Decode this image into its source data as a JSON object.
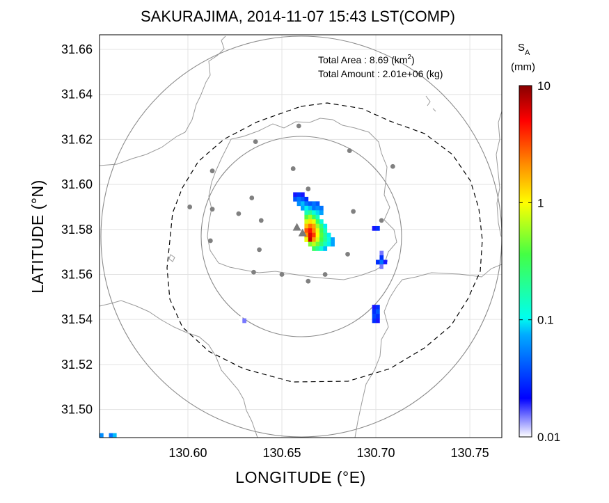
{
  "chart_data": {
    "type": "heatmap",
    "title": "SAKURAJIMA, 2014-11-07 15:43 LST(COMP)",
    "xlabel": "LONGITUDE (°E)",
    "ylabel": "LATITUDE (°N)",
    "xlim": [
      130.553,
      130.767
    ],
    "ylim": [
      31.4875,
      31.6665
    ],
    "xticks": [
      130.6,
      130.65,
      130.7,
      130.75
    ],
    "xtick_labels": [
      "130.60",
      "130.65",
      "130.70",
      "130.75"
    ],
    "yticks": [
      31.5,
      31.52,
      31.54,
      31.56,
      31.58,
      31.6,
      31.62,
      31.64,
      31.66
    ],
    "ytick_labels": [
      "31.50",
      "31.52",
      "31.54",
      "31.56",
      "31.58",
      "31.60",
      "31.62",
      "31.64",
      "31.66"
    ],
    "grid": true,
    "annotations": {
      "area_label": "Total Area   : 8.69 (km",
      "area_sup": "2",
      "area_close": ")",
      "amount_label": "Total Amount : 2.01e+06 (kg)"
    },
    "colorbar": {
      "label_main": "S",
      "label_sub": "A",
      "label_unit": "(mm)",
      "scale": "log",
      "range": [
        0.01,
        10
      ],
      "ticks": [
        10,
        1,
        0.1,
        0.01
      ],
      "tick_labels": [
        "10",
        "1",
        "0.1",
        "0.01"
      ],
      "colors": [
        "#ffffff",
        "#0000ff",
        "#00aaff",
        "#00ffee",
        "#44ff44",
        "#ffff00",
        "#ff8800",
        "#ff0000",
        "#880000"
      ]
    },
    "vent_markers": [
      {
        "lon": 130.658,
        "lat": 31.581
      },
      {
        "lon": 130.661,
        "lat": 31.5785
      }
    ],
    "stations": [
      {
        "lon": 130.659,
        "lat": 31.626
      },
      {
        "lon": 130.636,
        "lat": 31.619
      },
      {
        "lon": 130.686,
        "lat": 31.615
      },
      {
        "lon": 130.613,
        "lat": 31.606
      },
      {
        "lon": 130.656,
        "lat": 31.607
      },
      {
        "lon": 130.709,
        "lat": 31.608
      },
      {
        "lon": 130.664,
        "lat": 31.598
      },
      {
        "lon": 130.601,
        "lat": 31.59
      },
      {
        "lon": 130.613,
        "lat": 31.589
      },
      {
        "lon": 130.634,
        "lat": 31.594
      },
      {
        "lon": 130.627,
        "lat": 31.587
      },
      {
        "lon": 130.639,
        "lat": 31.584
      },
      {
        "lon": 130.688,
        "lat": 31.588
      },
      {
        "lon": 130.703,
        "lat": 31.584
      },
      {
        "lon": 130.612,
        "lat": 31.575
      },
      {
        "lon": 130.638,
        "lat": 31.571
      },
      {
        "lon": 130.685,
        "lat": 31.569
      },
      {
        "lon": 130.635,
        "lat": 31.561
      },
      {
        "lon": 130.65,
        "lat": 31.56
      },
      {
        "lon": 130.673,
        "lat": 31.56
      },
      {
        "lon": 130.664,
        "lat": 31.557
      }
    ],
    "ash_cells": [
      {
        "lon": 130.657,
        "lat": 31.5955,
        "v": 0.02
      },
      {
        "lon": 130.659,
        "lat": 31.5955,
        "v": 0.03
      },
      {
        "lon": 130.661,
        "lat": 31.5955,
        "v": 0.02
      },
      {
        "lon": 130.657,
        "lat": 31.5935,
        "v": 0.04
      },
      {
        "lon": 130.659,
        "lat": 31.5935,
        "v": 0.05
      },
      {
        "lon": 130.661,
        "lat": 31.5935,
        "v": 0.04
      },
      {
        "lon": 130.663,
        "lat": 31.5935,
        "v": 0.03
      },
      {
        "lon": 130.659,
        "lat": 31.5915,
        "v": 0.06
      },
      {
        "lon": 130.661,
        "lat": 31.5915,
        "v": 0.08
      },
      {
        "lon": 130.663,
        "lat": 31.5915,
        "v": 0.05
      },
      {
        "lon": 130.665,
        "lat": 31.5915,
        "v": 0.04
      },
      {
        "lon": 130.667,
        "lat": 31.5915,
        "v": 0.05
      },
      {
        "lon": 130.669,
        "lat": 31.5915,
        "v": 0.04
      },
      {
        "lon": 130.661,
        "lat": 31.5895,
        "v": 0.07
      },
      {
        "lon": 130.663,
        "lat": 31.5895,
        "v": 0.1
      },
      {
        "lon": 130.665,
        "lat": 31.5895,
        "v": 0.08
      },
      {
        "lon": 130.667,
        "lat": 31.5895,
        "v": 0.05
      },
      {
        "lon": 130.669,
        "lat": 31.5895,
        "v": 0.06
      },
      {
        "lon": 130.671,
        "lat": 31.5895,
        "v": 0.05
      },
      {
        "lon": 130.663,
        "lat": 31.5875,
        "v": 0.15
      },
      {
        "lon": 130.665,
        "lat": 31.5875,
        "v": 0.2
      },
      {
        "lon": 130.667,
        "lat": 31.5875,
        "v": 0.12
      },
      {
        "lon": 130.669,
        "lat": 31.5875,
        "v": 0.09
      },
      {
        "lon": 130.671,
        "lat": 31.5875,
        "v": 0.07
      },
      {
        "lon": 130.663,
        "lat": 31.5855,
        "v": 0.4
      },
      {
        "lon": 130.665,
        "lat": 31.5855,
        "v": 0.6
      },
      {
        "lon": 130.667,
        "lat": 31.5855,
        "v": 0.3
      },
      {
        "lon": 130.669,
        "lat": 31.5855,
        "v": 0.15
      },
      {
        "lon": 130.663,
        "lat": 31.5835,
        "v": 0.8
      },
      {
        "lon": 130.665,
        "lat": 31.5835,
        "v": 1.2
      },
      {
        "lon": 130.667,
        "lat": 31.5835,
        "v": 0.9
      },
      {
        "lon": 130.669,
        "lat": 31.5835,
        "v": 0.3
      },
      {
        "lon": 130.671,
        "lat": 31.5835,
        "v": 0.12
      },
      {
        "lon": 130.663,
        "lat": 31.5815,
        "v": 1.5
      },
      {
        "lon": 130.665,
        "lat": 31.5815,
        "v": 2.5
      },
      {
        "lon": 130.667,
        "lat": 31.5815,
        "v": 1.8
      },
      {
        "lon": 130.669,
        "lat": 31.5815,
        "v": 0.6
      },
      {
        "lon": 130.671,
        "lat": 31.5815,
        "v": 0.25
      },
      {
        "lon": 130.673,
        "lat": 31.5815,
        "v": 0.1
      },
      {
        "lon": 130.663,
        "lat": 31.5795,
        "v": 3.0
      },
      {
        "lon": 130.665,
        "lat": 31.5795,
        "v": 4.5
      },
      {
        "lon": 130.667,
        "lat": 31.5795,
        "v": 2.2
      },
      {
        "lon": 130.669,
        "lat": 31.5795,
        "v": 0.9
      },
      {
        "lon": 130.671,
        "lat": 31.5795,
        "v": 0.35
      },
      {
        "lon": 130.673,
        "lat": 31.5795,
        "v": 0.15
      },
      {
        "lon": 130.663,
        "lat": 31.5775,
        "v": 2.0
      },
      {
        "lon": 130.665,
        "lat": 31.5775,
        "v": 6.0
      },
      {
        "lon": 130.667,
        "lat": 31.5775,
        "v": 3.5
      },
      {
        "lon": 130.669,
        "lat": 31.5775,
        "v": 1.0
      },
      {
        "lon": 130.671,
        "lat": 31.5775,
        "v": 0.4
      },
      {
        "lon": 130.673,
        "lat": 31.5775,
        "v": 0.2
      },
      {
        "lon": 130.675,
        "lat": 31.5775,
        "v": 0.1
      },
      {
        "lon": 130.663,
        "lat": 31.5755,
        "v": 0.9
      },
      {
        "lon": 130.665,
        "lat": 31.5755,
        "v": 7.0
      },
      {
        "lon": 130.667,
        "lat": 31.5755,
        "v": 2.0
      },
      {
        "lon": 130.669,
        "lat": 31.5755,
        "v": 0.8
      },
      {
        "lon": 130.671,
        "lat": 31.5755,
        "v": 0.35
      },
      {
        "lon": 130.673,
        "lat": 31.5755,
        "v": 0.2
      },
      {
        "lon": 130.675,
        "lat": 31.5755,
        "v": 0.12
      },
      {
        "lon": 130.677,
        "lat": 31.5755,
        "v": 0.07
      },
      {
        "lon": 130.665,
        "lat": 31.5735,
        "v": 0.5
      },
      {
        "lon": 130.667,
        "lat": 31.5735,
        "v": 0.7
      },
      {
        "lon": 130.669,
        "lat": 31.5735,
        "v": 0.45
      },
      {
        "lon": 130.671,
        "lat": 31.5735,
        "v": 0.25
      },
      {
        "lon": 130.673,
        "lat": 31.5735,
        "v": 0.15
      },
      {
        "lon": 130.675,
        "lat": 31.5735,
        "v": 0.1
      },
      {
        "lon": 130.677,
        "lat": 31.5735,
        "v": 0.07
      },
      {
        "lon": 130.667,
        "lat": 31.5715,
        "v": 0.3
      },
      {
        "lon": 130.669,
        "lat": 31.5715,
        "v": 0.2
      },
      {
        "lon": 130.671,
        "lat": 31.5715,
        "v": 0.12
      },
      {
        "lon": 130.673,
        "lat": 31.5715,
        "v": 0.08
      },
      {
        "lon": 130.699,
        "lat": 31.5805,
        "v": 0.02
      },
      {
        "lon": 130.701,
        "lat": 31.5805,
        "v": 0.03
      },
      {
        "lon": 130.703,
        "lat": 31.5695,
        "v": 0.015
      },
      {
        "lon": 130.703,
        "lat": 31.5675,
        "v": 0.03
      },
      {
        "lon": 130.701,
        "lat": 31.5655,
        "v": 0.03
      },
      {
        "lon": 130.703,
        "lat": 31.5655,
        "v": 0.05
      },
      {
        "lon": 130.705,
        "lat": 31.5655,
        "v": 0.02
      },
      {
        "lon": 130.703,
        "lat": 31.5635,
        "v": 0.015
      },
      {
        "lon": 130.705,
        "lat": 31.5635,
        "v": 0.01
      },
      {
        "lon": 130.707,
        "lat": 31.5645,
        "v": 0.01
      },
      {
        "lon": 130.699,
        "lat": 31.5455,
        "v": 0.02
      },
      {
        "lon": 130.701,
        "lat": 31.5455,
        "v": 0.03
      },
      {
        "lon": 130.699,
        "lat": 31.5435,
        "v": 0.03
      },
      {
        "lon": 130.701,
        "lat": 31.5435,
        "v": 0.04
      },
      {
        "lon": 130.699,
        "lat": 31.5415,
        "v": 0.035
      },
      {
        "lon": 130.701,
        "lat": 31.5415,
        "v": 0.03
      },
      {
        "lon": 130.699,
        "lat": 31.5395,
        "v": 0.03
      },
      {
        "lon": 130.701,
        "lat": 31.5395,
        "v": 0.02
      },
      {
        "lon": 130.639,
        "lat": 31.5425,
        "v": 0.01
      },
      {
        "lon": 130.641,
        "lat": 31.5425,
        "v": 0.01
      },
      {
        "lon": 130.628,
        "lat": 31.5405,
        "v": 0.01
      },
      {
        "lon": 130.63,
        "lat": 31.5395,
        "v": 0.015
      },
      {
        "lon": 130.554,
        "lat": 31.4885,
        "v": 0.06
      },
      {
        "lon": 130.559,
        "lat": 31.4885,
        "v": 0.05
      },
      {
        "lon": 130.561,
        "lat": 31.4885,
        "v": 0.08
      }
    ]
  }
}
